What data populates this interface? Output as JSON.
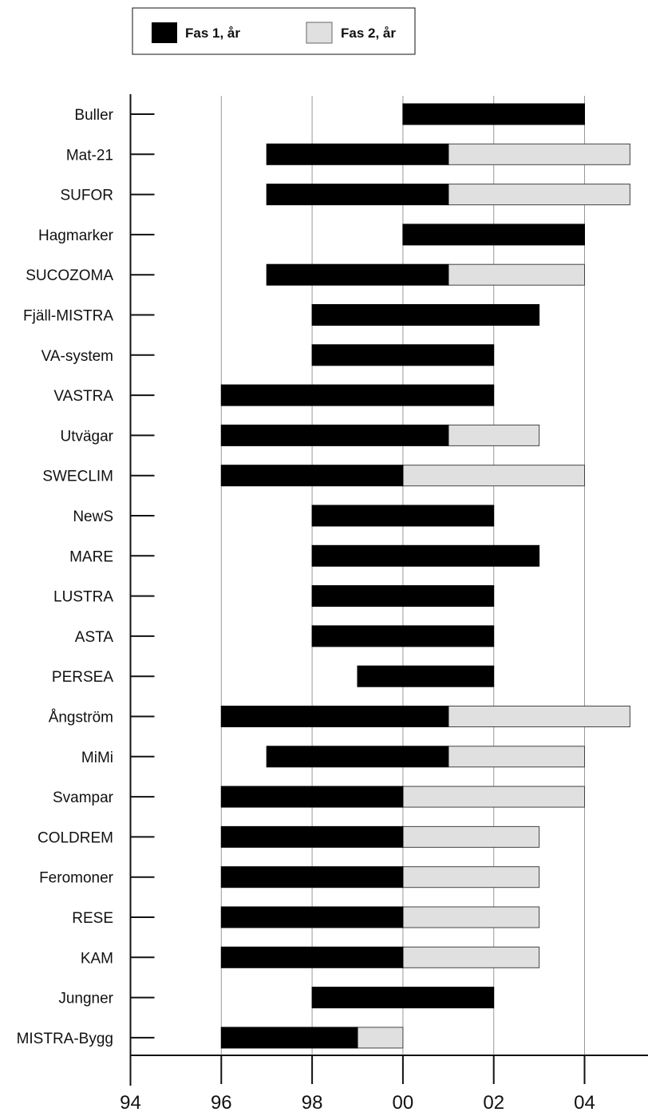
{
  "chart_data": {
    "type": "bar",
    "orientation": "horizontal",
    "stacked": true,
    "x_range": [
      1994,
      2005
    ],
    "grid": true,
    "legend_position": "top",
    "x_ticks": [
      {
        "value": 1994,
        "label": "94"
      },
      {
        "value": 1996,
        "label": "96"
      },
      {
        "value": 1998,
        "label": "98"
      },
      {
        "value": 2000,
        "label": "00"
      },
      {
        "value": 2002,
        "label": "02"
      },
      {
        "value": 2004,
        "label": "04"
      }
    ],
    "series": [
      {
        "name": "Fas 1, år",
        "color": "#000000"
      },
      {
        "name": "Fas 2, år",
        "color": "#e0e0e0"
      }
    ],
    "categories": [
      "Buller",
      "Mat-21",
      "SUFOR",
      "Hagmarker",
      "SUCOZOMA",
      "Fjäll-MISTRA",
      "VA-system",
      "VASTRA",
      "Utvägar",
      "SWECLIM",
      "NewS",
      "MARE",
      "LUSTRA",
      "ASTA",
      "PERSEA",
      "Ångström",
      "MiMi",
      "Svampar",
      "COLDREM",
      "Feromoner",
      "RESE",
      "KAM",
      "Jungner",
      "MISTRA-Bygg"
    ],
    "fas1_start": [
      2000.0,
      1997.0,
      1997.0,
      2000.0,
      1997.0,
      1998.0,
      1998.0,
      1996.0,
      1996.0,
      1996.0,
      1998.0,
      1998.0,
      1998.0,
      1998.0,
      1999.0,
      1996.0,
      1997.0,
      1996.0,
      1996.0,
      1996.0,
      1996.0,
      1996.0,
      1998.0,
      1996.0
    ],
    "fas1_end": [
      2004.0,
      2001.0,
      2001.0,
      2004.0,
      2001.0,
      2003.0,
      2002.0,
      2002.0,
      2001.0,
      2000.0,
      2002.0,
      2003.0,
      2002.0,
      2002.0,
      2002.0,
      2001.0,
      2001.0,
      2000.0,
      2000.0,
      2000.0,
      2000.0,
      2000.0,
      2002.0,
      1999.0
    ],
    "fas2_end": [
      null,
      2005.0,
      2005.0,
      null,
      2004.0,
      null,
      null,
      null,
      2003.0,
      2004.0,
      null,
      null,
      null,
      null,
      null,
      2005.0,
      2004.0,
      2004.0,
      2003.0,
      2003.0,
      2003.0,
      2003.0,
      null,
      2000.0
    ]
  }
}
